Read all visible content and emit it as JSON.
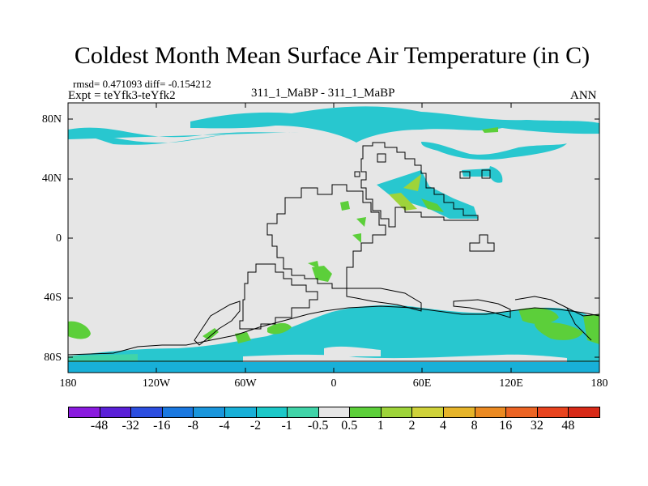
{
  "title": "Coldest Month Mean Surface Air Temperature (in C)",
  "stats": "rmsd= 0.471093 diff= -0.154212",
  "expt": "Expt = teYfk3-teYfk2",
  "subtitle": "311_1_MaBP - 311_1_MaBP",
  "season": "ANN",
  "y_ticks": [
    "80N",
    "40N",
    "0",
    "40S",
    "80S"
  ],
  "x_ticks": [
    "180",
    "120W",
    "60W",
    "0",
    "60E",
    "120E",
    "180"
  ],
  "colorbar": {
    "labels": [
      "-48",
      "-32",
      "-16",
      "-8",
      "-4",
      "-2",
      "-1",
      "-0.5",
      "0.5",
      "1",
      "2",
      "4",
      "8",
      "16",
      "32",
      "48"
    ],
    "colors": [
      "#8a1adf",
      "#5a20d8",
      "#2c4ee0",
      "#1a78e0",
      "#1a96dc",
      "#18b0d8",
      "#1cc8c8",
      "#40d4a8",
      "#e6e6e6",
      "#5ccf3a",
      "#9ed43a",
      "#cfd23a",
      "#e6b42a",
      "#eb8a22",
      "#ec6424",
      "#e8431e",
      "#d82a18"
    ]
  },
  "colors": {
    "background": "#e6e6e6",
    "coast": "#000000"
  }
}
